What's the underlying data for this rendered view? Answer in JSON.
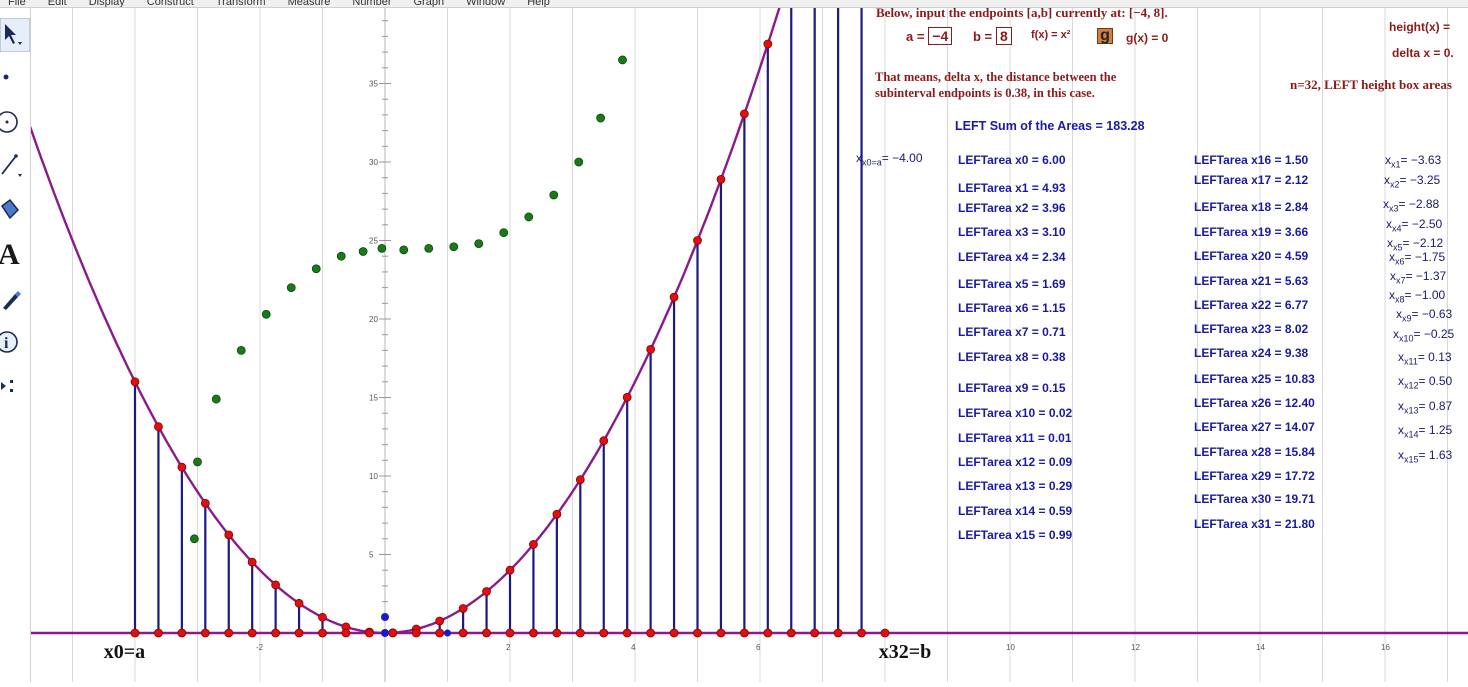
{
  "menu": [
    "File",
    "Edit",
    "Display",
    "Construct",
    "Transform",
    "Measure",
    "Number",
    "Graph",
    "Window",
    "Help"
  ],
  "toolbar": [
    {
      "name": "arrow-select-tool-icon"
    },
    {
      "name": "point-tool-icon"
    },
    {
      "name": "compass-tool-icon"
    },
    {
      "name": "straightedge-tool-icon"
    },
    {
      "name": "polygon-tool-icon"
    },
    {
      "name": "text-tool-icon",
      "glyph": "A"
    },
    {
      "name": "marker-tool-icon"
    },
    {
      "name": "information-tool-icon",
      "glyph": "i"
    },
    {
      "name": "custom-tool-icon"
    }
  ],
  "header": {
    "instruction": "Below, input the endpoints [a,b] currently at: [−4, 8].",
    "a_label": "a =",
    "a_value": "−4",
    "b_label": "b =",
    "b_value": "8",
    "f_label": "f(x) = x²",
    "g_button": "g",
    "g_label": "g(x) = 0",
    "height_label": "height(x) =",
    "delta_label": "delta x = 0.",
    "explanation_line1": "That means, delta x, the distance between the",
    "explanation_line2": "subinterval endpoints is 0.38, in this case.",
    "n_label": "n=32, LEFT height box areas",
    "sum_label": "LEFT Sum of the Areas = 183.28",
    "x0_label": "x",
    "x0_sub": "x0=a",
    "x0_value": "= −4.00"
  },
  "areas_left": [
    "LEFTarea x0 = 6.00",
    "LEFTarea x1 = 4.93",
    "LEFTarea x2 = 3.96",
    "LEFTarea x3 = 3.10",
    "LEFTarea x4 = 2.34",
    "LEFTarea x5 = 1.69",
    "LEFTarea x6 = 1.15",
    "LEFTarea x7 = 0.71",
    "LEFTarea x8 = 0.38",
    "LEFTarea x9 = 0.15",
    "LEFTarea x10 = 0.02",
    "LEFTarea x11 = 0.01",
    "LEFTarea x12 = 0.09",
    "LEFTarea x13 = 0.29",
    "LEFTarea x14 = 0.59",
    "LEFTarea x15 = 0.99"
  ],
  "areas_right": [
    "LEFTarea x16 = 1.50",
    "LEFTarea x17 = 2.12",
    "LEFTarea x18 = 2.84",
    "LEFTarea x19 = 3.66",
    "LEFTarea x20 = 4.59",
    "LEFTarea x21 = 5.63",
    "LEFTarea x22 = 6.77",
    "LEFTarea x23 = 8.02",
    "LEFTarea x24 = 9.38",
    "LEFTarea x25 = 10.83",
    "LEFTarea x26 = 12.40",
    "LEFTarea x27 = 14.07",
    "LEFTarea x28 = 15.84",
    "LEFTarea x29 = 17.72",
    "LEFTarea x30 = 19.71",
    "LEFTarea x31 = 21.80"
  ],
  "x_values": [
    {
      "name": "x1",
      "value": "= −3.63"
    },
    {
      "name": "x2",
      "value": "= −3.25"
    },
    {
      "name": "x3",
      "value": "= −2.88"
    },
    {
      "name": "x4",
      "value": "= −2.50"
    },
    {
      "name": "x5",
      "value": "= −2.12"
    },
    {
      "name": "x6",
      "value": "= −1.75"
    },
    {
      "name": "x7",
      "value": "= −1.37"
    },
    {
      "name": "x8",
      "value": "= −1.00"
    },
    {
      "name": "x9",
      "value": "= −0.63"
    },
    {
      "name": "x10",
      "value": "= −0.25"
    },
    {
      "name": "x11",
      "value": "= 0.13"
    },
    {
      "name": "x12",
      "value": "= 0.50"
    },
    {
      "name": "x13",
      "value": "= 0.87"
    },
    {
      "name": "x14",
      "value": "= 1.25"
    },
    {
      "name": "x15",
      "value": "= 1.63"
    }
  ],
  "graph": {
    "function": "x^2",
    "a": -4,
    "b": 8,
    "n": 32,
    "x_tick_labels": [
      "-2",
      "2",
      "4",
      "6",
      "10",
      "12",
      "14",
      "16"
    ],
    "y_tick_labels": [
      "5",
      "10",
      "15",
      "20",
      "25",
      "30",
      "35"
    ],
    "endpoint_label_left": "x0=a",
    "endpoint_label_right": "x32=b",
    "green_points": [
      [
        -3.05,
        6.0
      ],
      [
        -3.0,
        10.9
      ],
      [
        -2.7,
        14.9
      ],
      [
        -2.3,
        18.0
      ],
      [
        -1.9,
        20.3
      ],
      [
        -1.5,
        22.0
      ],
      [
        -1.1,
        23.2
      ],
      [
        -0.7,
        24.0
      ],
      [
        -0.35,
        24.3
      ],
      [
        -0.05,
        24.5
      ],
      [
        0.3,
        24.4
      ],
      [
        0.7,
        24.5
      ],
      [
        1.1,
        24.6
      ],
      [
        1.5,
        24.8
      ],
      [
        1.9,
        25.5
      ],
      [
        2.3,
        26.5
      ],
      [
        2.7,
        27.9
      ],
      [
        3.1,
        30.0
      ],
      [
        3.45,
        32.8
      ],
      [
        3.8,
        36.5
      ]
    ],
    "colors": {
      "curve": "#8b1a8b",
      "bars": "#1a1a80",
      "points": "#e01010",
      "green": "#1a7a1a",
      "grid": "#d8d8d8"
    }
  }
}
